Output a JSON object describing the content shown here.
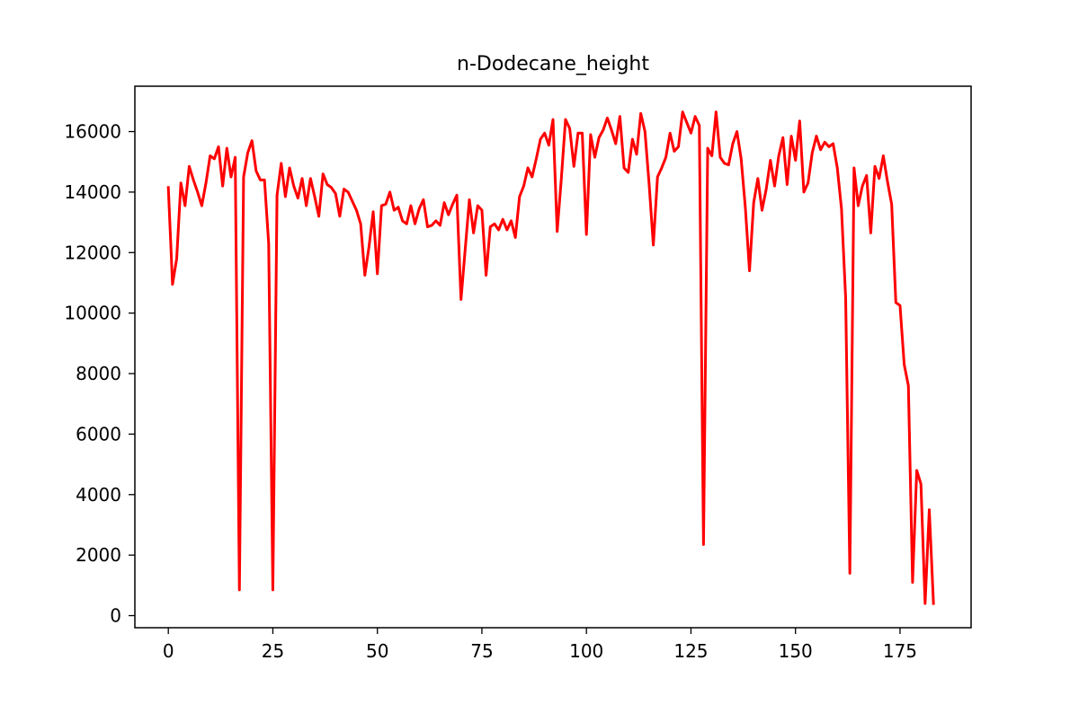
{
  "chart_data": {
    "type": "line",
    "title": "n-Dodecane_height",
    "xlabel": "",
    "ylabel": "",
    "xlim": [
      -8,
      192
    ],
    "ylim": [
      -400,
      17500
    ],
    "xticks": [
      0,
      25,
      50,
      75,
      100,
      125,
      150,
      175
    ],
    "yticks": [
      0,
      2000,
      4000,
      6000,
      8000,
      10000,
      12000,
      14000,
      16000
    ],
    "grid": false,
    "legend": "none",
    "series": [
      {
        "color": "#ff0000",
        "x": [
          0,
          1,
          2,
          3,
          4,
          5,
          6,
          7,
          8,
          9,
          10,
          11,
          12,
          13,
          14,
          15,
          16,
          17,
          18,
          19,
          20,
          21,
          22,
          23,
          24,
          25,
          26,
          27,
          28,
          29,
          30,
          31,
          32,
          33,
          34,
          35,
          36,
          37,
          38,
          39,
          40,
          41,
          42,
          43,
          44,
          45,
          46,
          47,
          48,
          49,
          50,
          51,
          52,
          53,
          54,
          55,
          56,
          57,
          58,
          59,
          60,
          61,
          62,
          63,
          64,
          65,
          66,
          67,
          68,
          69,
          70,
          71,
          72,
          73,
          74,
          75,
          76,
          77,
          78,
          79,
          80,
          81,
          82,
          83,
          84,
          85,
          86,
          87,
          88,
          89,
          90,
          91,
          92,
          93,
          94,
          95,
          96,
          97,
          98,
          99,
          100,
          101,
          102,
          103,
          104,
          105,
          106,
          107,
          108,
          109,
          110,
          111,
          112,
          113,
          114,
          115,
          116,
          117,
          118,
          119,
          120,
          121,
          122,
          123,
          124,
          125,
          126,
          127,
          128,
          129,
          130,
          131,
          132,
          133,
          134,
          135,
          136,
          137,
          138,
          139,
          140,
          141,
          142,
          143,
          144,
          145,
          146,
          147,
          148,
          149,
          150,
          151,
          152,
          153,
          154,
          155,
          156,
          157,
          158,
          159,
          160,
          161,
          162,
          163,
          164,
          165,
          166,
          167,
          168,
          169,
          170,
          171,
          172,
          173,
          174,
          175,
          176,
          177,
          178,
          179,
          180,
          181,
          182,
          183
        ],
        "values": [
          14150,
          10950,
          11800,
          14300,
          13550,
          14850,
          14400,
          14000,
          13550,
          14300,
          15200,
          15100,
          15500,
          14200,
          15450,
          14500,
          15150,
          850,
          14500,
          15300,
          15700,
          14700,
          14400,
          14400,
          12300,
          850,
          13900,
          14950,
          13850,
          14800,
          14200,
          13800,
          14450,
          13550,
          14450,
          13850,
          13200,
          14600,
          14250,
          14150,
          13950,
          13200,
          14100,
          14000,
          13700,
          13400,
          12950,
          11250,
          12200,
          13350,
          11300,
          13550,
          13600,
          14000,
          13400,
          13500,
          13050,
          12950,
          13550,
          12950,
          13450,
          13750,
          12850,
          12900,
          13050,
          12900,
          13650,
          13250,
          13600,
          13900,
          10450,
          12100,
          13750,
          12650,
          13550,
          13400,
          11250,
          12850,
          12950,
          12750,
          13100,
          12750,
          13050,
          12500,
          13850,
          14200,
          14800,
          14500,
          15100,
          15750,
          15950,
          15550,
          16400,
          12700,
          14450,
          16400,
          16100,
          14850,
          15950,
          15950,
          12600,
          15900,
          15150,
          15800,
          16050,
          16450,
          16050,
          15600,
          16500,
          14800,
          14650,
          15750,
          15250,
          16600,
          16000,
          14250,
          12250,
          14500,
          14800,
          15150,
          15950,
          15350,
          15500,
          16650,
          16300,
          15950,
          16500,
          16200,
          2350,
          15450,
          15200,
          16650,
          15150,
          14950,
          14900,
          15600,
          16000,
          15100,
          13500,
          11400,
          13650,
          14450,
          13400,
          14100,
          15050,
          14200,
          15200,
          15800,
          14250,
          15850,
          15050,
          16350,
          14000,
          14300,
          15300,
          15850,
          15400,
          15650,
          15500,
          15600,
          14800,
          13450,
          10500,
          1400,
          14800,
          13550,
          14200,
          14550,
          12650,
          14850,
          14450,
          15200,
          14350,
          13600,
          10350,
          10250,
          8300,
          7600,
          1100,
          4800,
          4350,
          400,
          3500,
          400
        ]
      }
    ]
  }
}
